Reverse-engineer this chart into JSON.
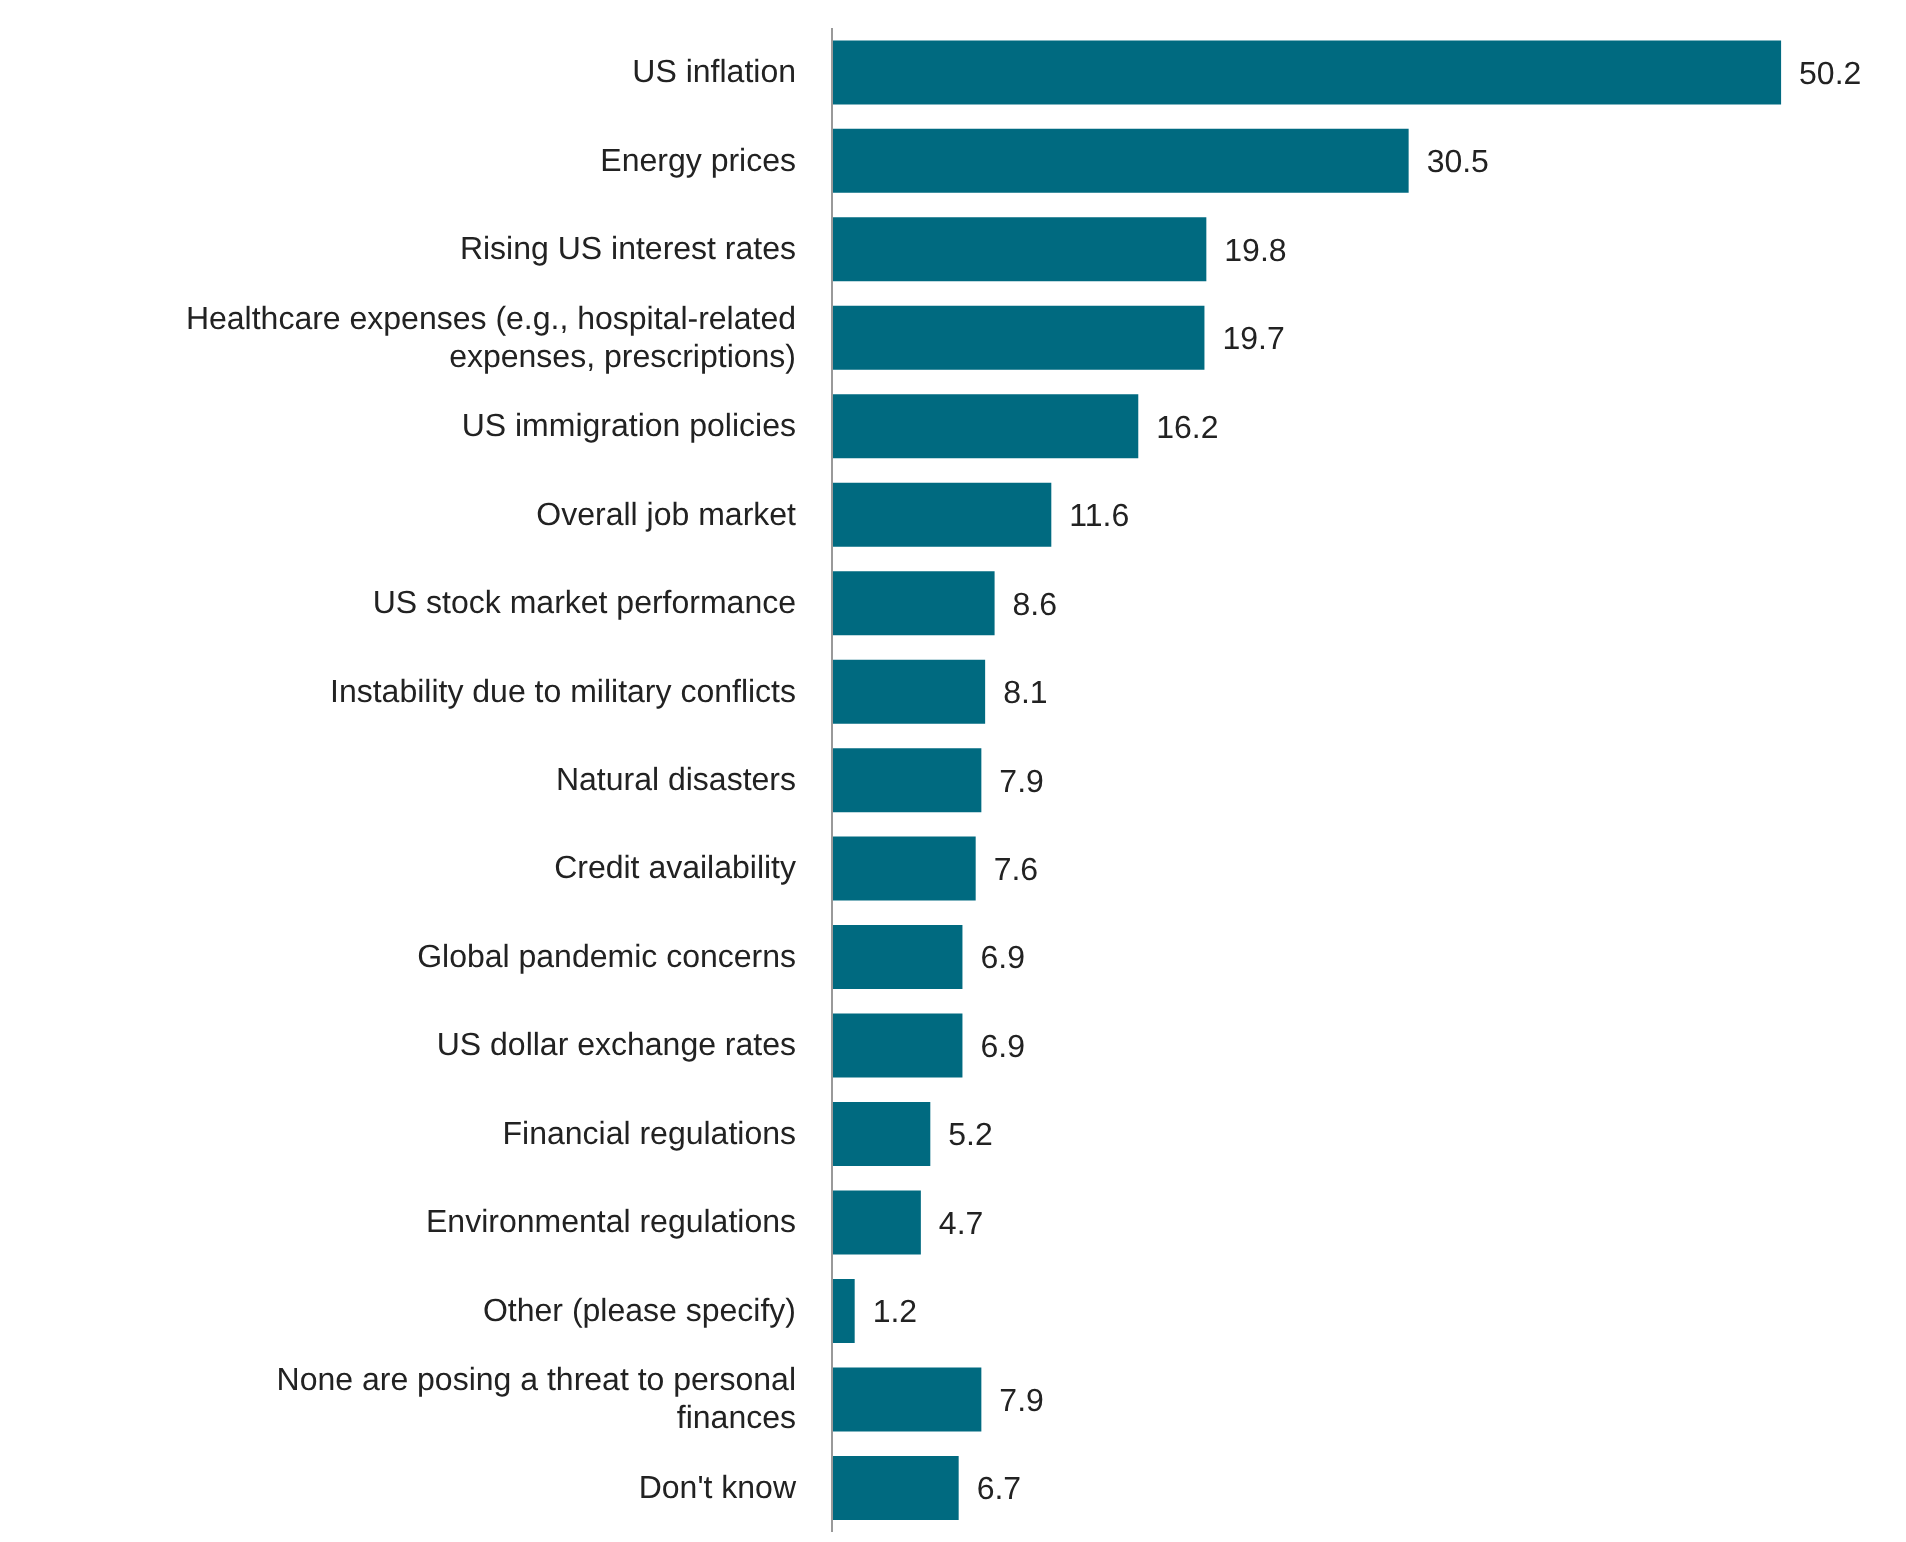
{
  "chart_data": {
    "type": "bar",
    "orientation": "horizontal",
    "categories": [
      "US inflation",
      "Energy prices",
      "Rising US interest rates",
      "Healthcare expenses (e.g., hospital-related expenses, prescriptions)",
      "US immigration policies",
      "Overall job market",
      "US stock market performance",
      "Instability due to military conflicts",
      "Natural disasters",
      "Credit availability",
      "Global pandemic concerns",
      "US dollar exchange rates",
      "Financial regulations",
      "Environmental regulations",
      "Other (please specify)",
      "None are posing a threat to personal finances",
      "Don't know"
    ],
    "values": [
      50.2,
      30.5,
      19.8,
      19.7,
      16.2,
      11.6,
      8.6,
      8.1,
      7.9,
      7.6,
      6.9,
      6.9,
      5.2,
      4.7,
      1.2,
      7.9,
      6.7
    ],
    "color": "#006a80",
    "data_labels": true,
    "grid": false,
    "legend": false
  }
}
